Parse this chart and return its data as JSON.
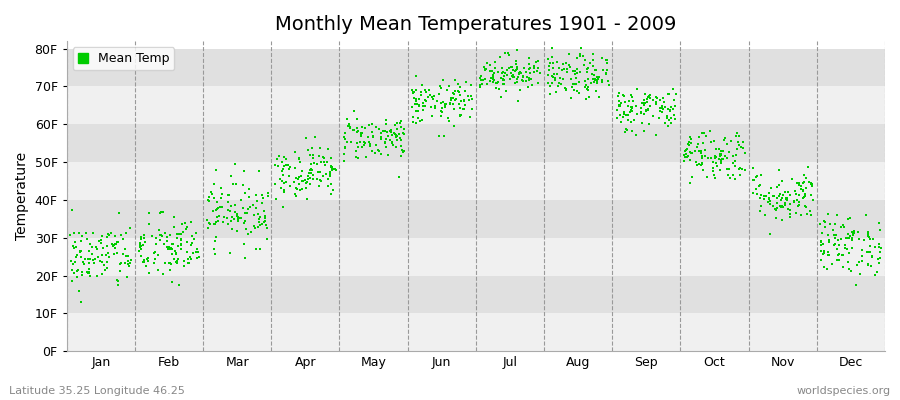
{
  "title": "Monthly Mean Temperatures 1901 - 2009",
  "ylabel": "Temperature",
  "xlabel_months": [
    "Jan",
    "Feb",
    "Mar",
    "Apr",
    "May",
    "Jun",
    "Jul",
    "Aug",
    "Sep",
    "Oct",
    "Nov",
    "Dec"
  ],
  "ytick_labels": [
    "0F",
    "10F",
    "20F",
    "30F",
    "40F",
    "50F",
    "60F",
    "70F",
    "80F"
  ],
  "ytick_values": [
    0,
    10,
    20,
    30,
    40,
    50,
    60,
    70,
    80
  ],
  "ylim": [
    0,
    82
  ],
  "xlim": [
    0,
    12.0
  ],
  "marker_color": "#00cc00",
  "bg_white": "#ffffff",
  "band_light": "#f0f0f0",
  "band_dark": "#e0e0e0",
  "legend_label": "Mean Temp",
  "footer_left": "Latitude 35.25 Longitude 46.25",
  "footer_right": "worldspecies.org",
  "n_years": 109,
  "monthly_means_F": [
    25.0,
    27.0,
    37.0,
    47.5,
    56.5,
    65.5,
    73.5,
    72.5,
    64.0,
    52.0,
    41.0,
    28.0
  ],
  "monthly_stds_F": [
    4.5,
    4.5,
    4.5,
    3.5,
    3.0,
    3.0,
    2.5,
    3.0,
    3.0,
    3.5,
    3.5,
    4.0
  ],
  "dashed_line_color": "#999999",
  "spine_color": "#aaaaaa",
  "title_fontsize": 14,
  "label_fontsize": 9,
  "ylabel_fontsize": 10,
  "footer_fontsize": 8
}
